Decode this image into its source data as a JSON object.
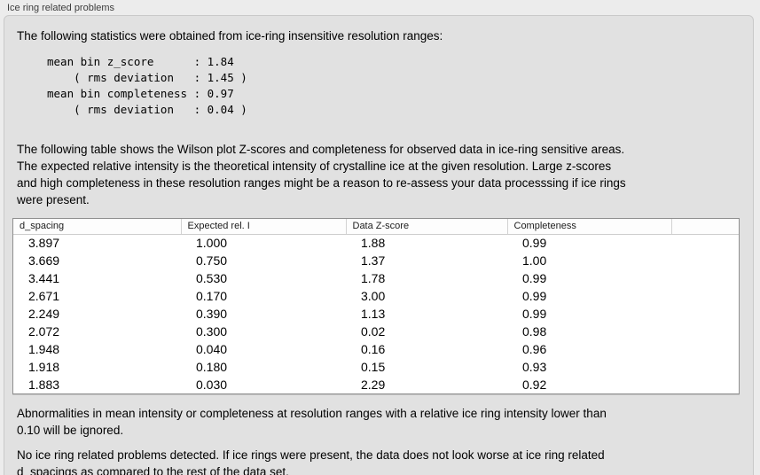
{
  "panel": {
    "title": "Ice ring related problems",
    "intro": "The following statistics were obtained from ice-ring insensitive resolution ranges:",
    "stats_text": "mean bin z_score      : 1.84\n    ( rms deviation   : 1.45 )\nmean bin completeness : 0.97\n    ( rms deviation   : 0.04 )",
    "table_description": "The following table shows the Wilson plot Z-scores and completeness for observed data in ice-ring sensitive areas.\nThe expected relative intensity is the theoretical intensity of crystalline ice at the given resolution. Large z-scores\nand high completeness in these resolution ranges might be a reason to re-assess your data processsing if ice rings\nwere present.",
    "abnormalities_note": "Abnormalities in mean intensity or completeness at resolution ranges with a relative ice ring intensity lower than\n0.10 will be ignored.",
    "conclusion": "No ice ring related problems detected. If ice rings were present, the data does not look worse at ice ring related\nd_spacings as compared to the rest of the data set."
  },
  "table": {
    "columns": [
      "d_spacing",
      "Expected rel. I",
      "Data Z-score",
      "Completeness",
      ""
    ],
    "rows": [
      [
        "3.897",
        "1.000",
        "1.88",
        "0.99",
        ""
      ],
      [
        "3.669",
        "0.750",
        "1.37",
        "1.00",
        ""
      ],
      [
        "3.441",
        "0.530",
        "1.78",
        "0.99",
        ""
      ],
      [
        "2.671",
        "0.170",
        "3.00",
        "0.99",
        ""
      ],
      [
        "2.249",
        "0.390",
        "1.13",
        "0.99",
        ""
      ],
      [
        "2.072",
        "0.300",
        "0.02",
        "0.98",
        ""
      ],
      [
        "1.948",
        "0.040",
        "0.16",
        "0.96",
        ""
      ],
      [
        "1.918",
        "0.180",
        "0.15",
        "0.93",
        ""
      ],
      [
        "1.883",
        "0.030",
        "2.29",
        "0.92",
        ""
      ]
    ]
  },
  "colors": {
    "window_background": "#ececec",
    "groupbox_background": "#e1e1e1",
    "table_background": "#ffffff",
    "table_border": "#8f8f8f"
  }
}
